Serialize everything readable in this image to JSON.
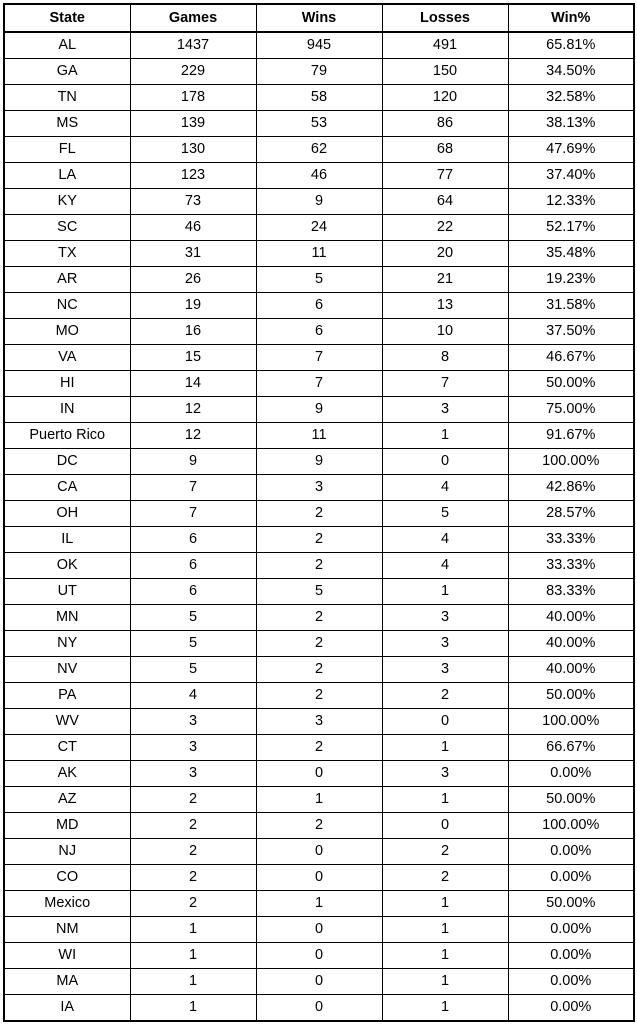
{
  "table": {
    "headers": [
      "State",
      "Games",
      "Wins",
      "Losses",
      "Win%"
    ],
    "rows": [
      [
        "AL",
        "1437",
        "945",
        "491",
        "65.81%"
      ],
      [
        "GA",
        "229",
        "79",
        "150",
        "34.50%"
      ],
      [
        "TN",
        "178",
        "58",
        "120",
        "32.58%"
      ],
      [
        "MS",
        "139",
        "53",
        "86",
        "38.13%"
      ],
      [
        "FL",
        "130",
        "62",
        "68",
        "47.69%"
      ],
      [
        "LA",
        "123",
        "46",
        "77",
        "37.40%"
      ],
      [
        "KY",
        "73",
        "9",
        "64",
        "12.33%"
      ],
      [
        "SC",
        "46",
        "24",
        "22",
        "52.17%"
      ],
      [
        "TX",
        "31",
        "11",
        "20",
        "35.48%"
      ],
      [
        "AR",
        "26",
        "5",
        "21",
        "19.23%"
      ],
      [
        "NC",
        "19",
        "6",
        "13",
        "31.58%"
      ],
      [
        "MO",
        "16",
        "6",
        "10",
        "37.50%"
      ],
      [
        "VA",
        "15",
        "7",
        "8",
        "46.67%"
      ],
      [
        "HI",
        "14",
        "7",
        "7",
        "50.00%"
      ],
      [
        "IN",
        "12",
        "9",
        "3",
        "75.00%"
      ],
      [
        "Puerto Rico",
        "12",
        "11",
        "1",
        "91.67%"
      ],
      [
        "DC",
        "9",
        "9",
        "0",
        "100.00%"
      ],
      [
        "CA",
        "7",
        "3",
        "4",
        "42.86%"
      ],
      [
        "OH",
        "7",
        "2",
        "5",
        "28.57%"
      ],
      [
        "IL",
        "6",
        "2",
        "4",
        "33.33%"
      ],
      [
        "OK",
        "6",
        "2",
        "4",
        "33.33%"
      ],
      [
        "UT",
        "6",
        "5",
        "1",
        "83.33%"
      ],
      [
        "MN",
        "5",
        "2",
        "3",
        "40.00%"
      ],
      [
        "NY",
        "5",
        "2",
        "3",
        "40.00%"
      ],
      [
        "NV",
        "5",
        "2",
        "3",
        "40.00%"
      ],
      [
        "PA",
        "4",
        "2",
        "2",
        "50.00%"
      ],
      [
        "WV",
        "3",
        "3",
        "0",
        "100.00%"
      ],
      [
        "CT",
        "3",
        "2",
        "1",
        "66.67%"
      ],
      [
        "AK",
        "3",
        "0",
        "3",
        "0.00%"
      ],
      [
        "AZ",
        "2",
        "1",
        "1",
        "50.00%"
      ],
      [
        "MD",
        "2",
        "2",
        "0",
        "100.00%"
      ],
      [
        "NJ",
        "2",
        "0",
        "2",
        "0.00%"
      ],
      [
        "CO",
        "2",
        "0",
        "2",
        "0.00%"
      ],
      [
        "Mexico",
        "2",
        "1",
        "1",
        "50.00%"
      ],
      [
        "NM",
        "1",
        "0",
        "1",
        "0.00%"
      ],
      [
        "WI",
        "1",
        "0",
        "1",
        "0.00%"
      ],
      [
        "MA",
        "1",
        "0",
        "1",
        "0.00%"
      ],
      [
        "IA",
        "1",
        "0",
        "1",
        "0.00%"
      ]
    ]
  }
}
